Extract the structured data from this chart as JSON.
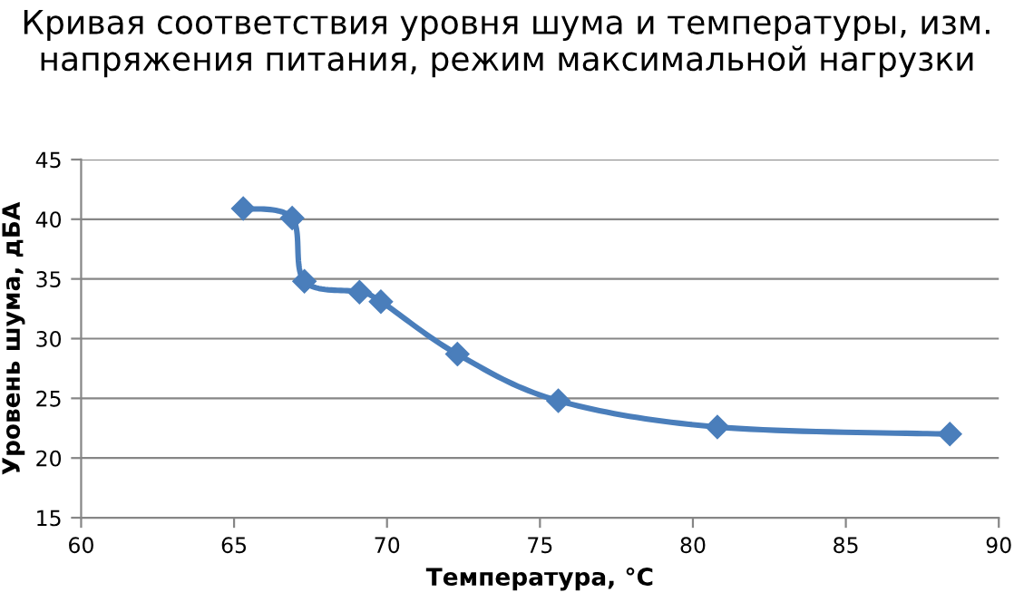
{
  "chart_data": {
    "type": "line",
    "title": "Кривая соответствия уровня шума и температуры, изм. напряжения питания, режим максимальной нагрузки",
    "xlabel": "Температура, °C",
    "ylabel": "Уровень шума, дБА",
    "series": [
      {
        "color": "#4a7ebb",
        "x": [
          65.3,
          66.9,
          67.3,
          69.1,
          69.8,
          72.3,
          75.6,
          80.8,
          88.4
        ],
        "values": [
          40.9,
          40.1,
          34.8,
          33.9,
          33.1,
          28.7,
          24.8,
          22.6,
          22.0
        ]
      }
    ],
    "xlim": [
      60,
      90
    ],
    "xticks": [
      60,
      65,
      70,
      75,
      80,
      85,
      90
    ],
    "ylim": [
      15,
      45
    ],
    "yticks": [
      15,
      20,
      25,
      30,
      35,
      40,
      45
    ],
    "grid": "y",
    "legend": false,
    "marker": "diamond",
    "line_style": "solid"
  }
}
